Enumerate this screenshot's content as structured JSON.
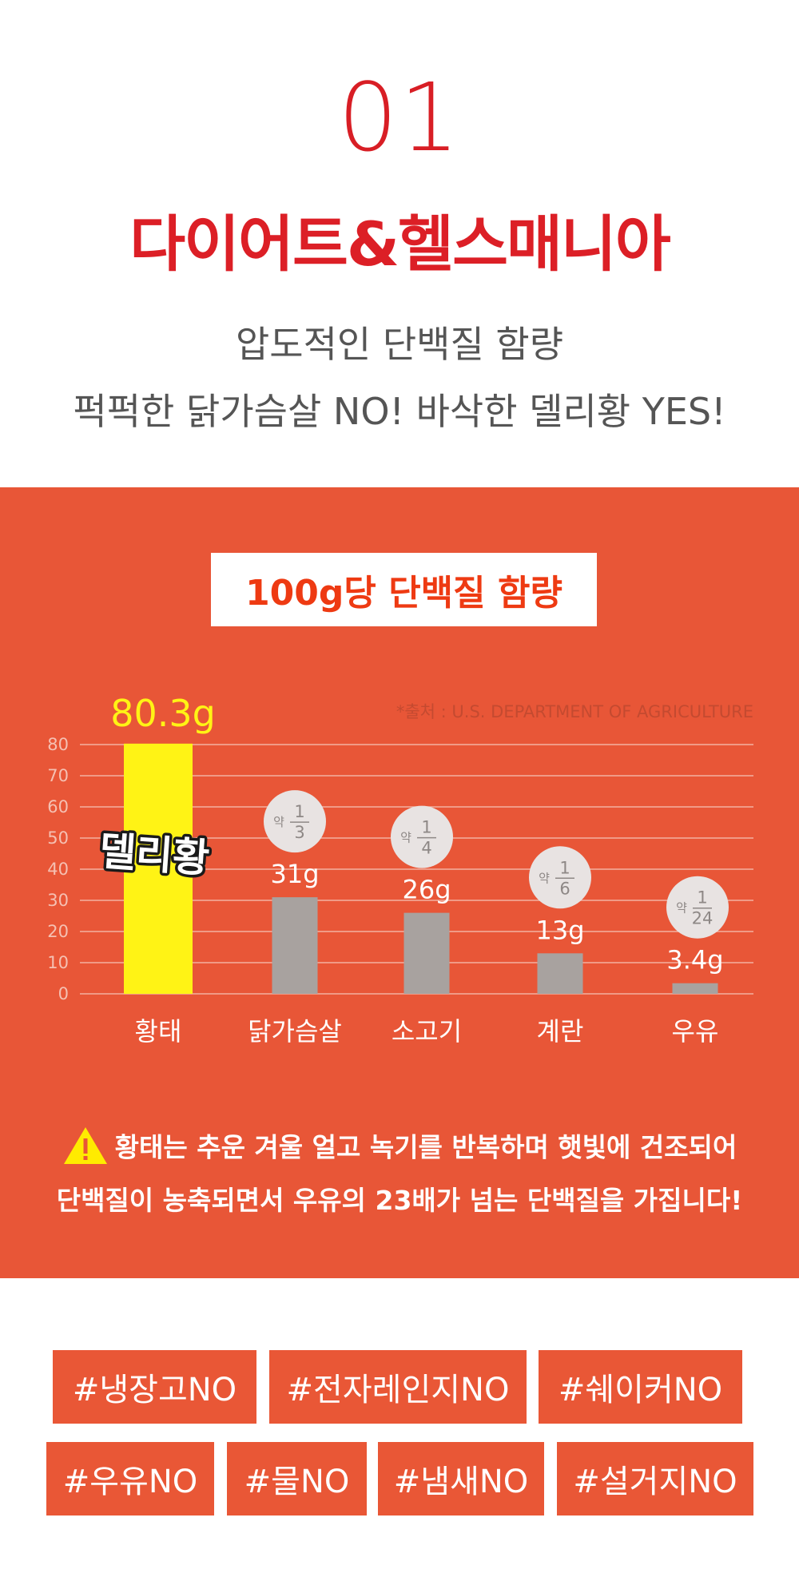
{
  "header": {
    "number": "01",
    "title": "다이어트&헬스매니아",
    "subtitle_line1": "압도적인 단백질 함량",
    "subtitle_line2": "퍽퍽한 닭가슴살 NO! 바삭한 델리황 YES!"
  },
  "chart_box": {
    "title": "100g당 단백질 함량",
    "source": "*출처 : U.S. DEPARTMENT OF AGRICULTURE",
    "highlight_label": "80.3g",
    "brand_sticker": "델리황"
  },
  "chart_data": {
    "type": "bar",
    "title": "100g당 단백질 함량",
    "categories": [
      "황태",
      "닭가슴살",
      "소고기",
      "계란",
      "우유"
    ],
    "values": [
      80.3,
      31,
      26,
      13,
      3.4
    ],
    "value_labels": [
      "80.3g",
      "31g",
      "26g",
      "13g",
      "3.4g"
    ],
    "ratio_badges": [
      null,
      {
        "prefix": "약",
        "numerator": "1",
        "denominator": "3"
      },
      {
        "prefix": "약",
        "numerator": "1",
        "denominator": "4"
      },
      {
        "prefix": "약",
        "numerator": "1",
        "denominator": "6"
      },
      {
        "prefix": "약",
        "numerator": "1",
        "denominator": "24"
      }
    ],
    "yticks": [
      0,
      10,
      20,
      30,
      40,
      50,
      60,
      70,
      80
    ],
    "ylim": [
      0,
      80
    ],
    "grid": true,
    "colors": {
      "highlight": "#fff315",
      "bar": "#a8a29f",
      "grid": "#f2b1a1",
      "tick": "#f5c0b2"
    }
  },
  "note": {
    "line1": "황태는 추운 겨울 얼고 녹기를 반복하며 햇빛에 건조되어",
    "line2": "단백질이 농축되면서 우유의 23배가 넘는 단백질을 가집니다!",
    "icon": "warning-icon"
  },
  "tags": [
    "#냉장고NO",
    "#전자레인지NO",
    "#쉐이커NO",
    "#우유NO",
    "#물NO",
    "#냄새NO",
    "#설거지NO"
  ],
  "colors": {
    "accent_red": "#dc1f26",
    "panel": "#e85637",
    "tag": "#e95736"
  }
}
